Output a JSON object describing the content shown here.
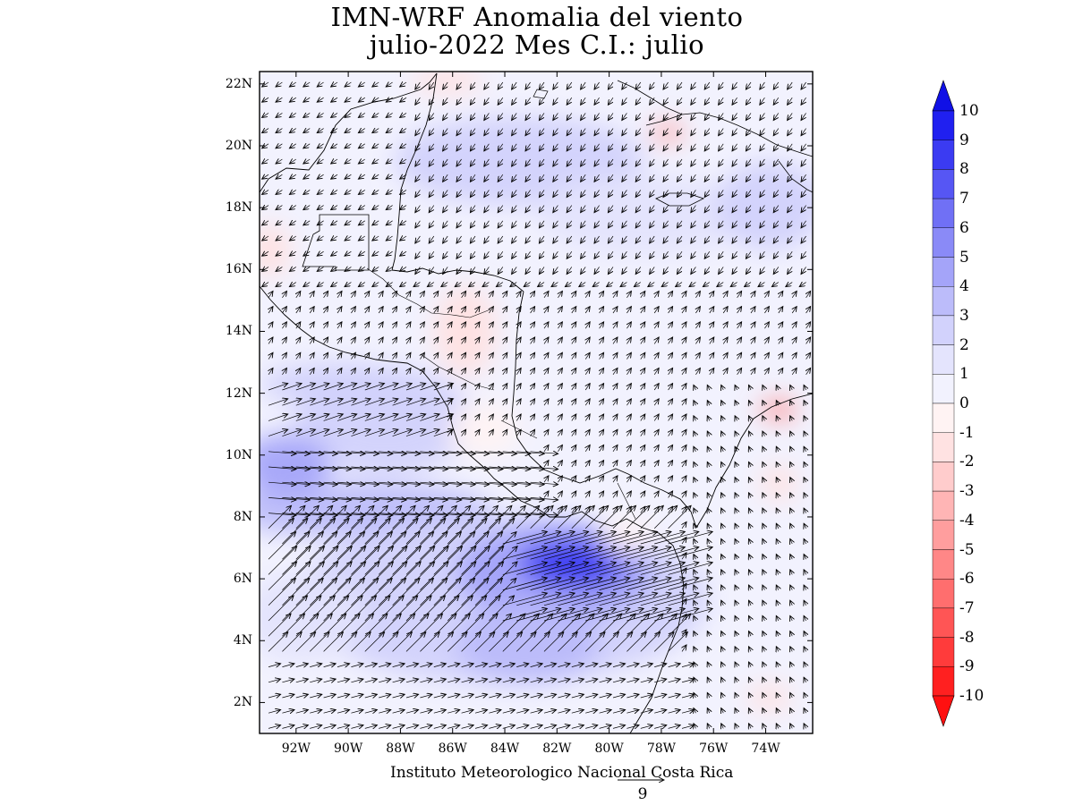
{
  "title": {
    "line1": "IMN-WRF Anomalia del viento",
    "line2": "julio-2022 Mes C.I.: julio"
  },
  "map": {
    "extent": {
      "lon_min": -93.4,
      "lon_max": -72.2,
      "lat_min": 1.0,
      "lat_max": 22.4
    },
    "lat_ticks": [
      {
        "lat": 22,
        "label": "22N"
      },
      {
        "lat": 20,
        "label": "20N"
      },
      {
        "lat": 18,
        "label": "18N"
      },
      {
        "lat": 16,
        "label": "16N"
      },
      {
        "lat": 14,
        "label": "14N"
      },
      {
        "lat": 12,
        "label": "12N"
      },
      {
        "lat": 10,
        "label": "10N"
      },
      {
        "lat": 8,
        "label": "8N"
      },
      {
        "lat": 6,
        "label": "6N"
      },
      {
        "lat": 4,
        "label": "4N"
      },
      {
        "lat": 2,
        "label": "2N"
      }
    ],
    "lon_ticks": [
      {
        "lon": -92,
        "label": "92W"
      },
      {
        "lon": -90,
        "label": "90W"
      },
      {
        "lon": -88,
        "label": "88W"
      },
      {
        "lon": -86,
        "label": "86W"
      },
      {
        "lon": -84,
        "label": "84W"
      },
      {
        "lon": -82,
        "label": "82W"
      },
      {
        "lon": -80,
        "label": "80W"
      },
      {
        "lon": -78,
        "label": "78W"
      },
      {
        "lon": -76,
        "label": "76W"
      },
      {
        "lon": -74,
        "label": "74W"
      }
    ]
  },
  "colorbar": {
    "labels": [
      "10",
      "9",
      "8",
      "7",
      "6",
      "5",
      "4",
      "3",
      "2",
      "1",
      "0",
      "-1",
      "-2",
      "-3",
      "-4",
      "-5",
      "-6",
      "-7",
      "-8",
      "-9",
      "-10"
    ],
    "colors": {
      "above_10": "#1010e6",
      "9_10": "#2020f0",
      "8_9": "#3b3bf2",
      "7_8": "#5656f4",
      "6_7": "#7070f5",
      "5_6": "#8a8af7",
      "4_5": "#a4a4f9",
      "3_4": "#bcbcfa",
      "2_3": "#d2d2fc",
      "1_2": "#e4e4fd",
      "0_1": "#f2f2fe",
      "m1_0": "#fff3f3",
      "m2_m1": "#ffe2e2",
      "m3_m2": "#ffcccc",
      "m4_m3": "#ffb5b5",
      "m5_m4": "#ff9e9e",
      "m6_m5": "#ff8787",
      "m7_m6": "#ff6e6e",
      "m8_m7": "#ff5555",
      "m9_m8": "#ff3b3b",
      "m10_m9": "#ff2020",
      "below_m10": "#ff1010"
    }
  },
  "footer": {
    "credit": "Instituto Meteorologico Nacional Costa Rica",
    "reference_vector": "9"
  }
}
